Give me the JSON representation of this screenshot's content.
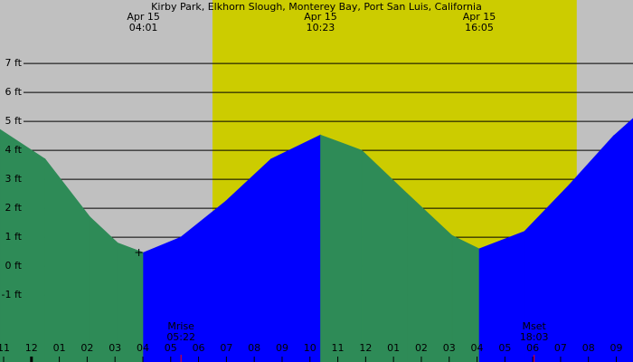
{
  "chart_data": {
    "type": "tide",
    "title": "Kirby Park, Elkhorn Slough, Monterey Bay, Port San Luis, California",
    "x": [
      -1.13,
      0.49,
      2.1,
      3.1,
      4.02,
      5.36,
      6.98,
      8.6,
      10.38,
      11.86,
      13.5,
      15.1,
      16.08,
      17.7,
      19.3,
      20.9,
      21.6
    ],
    "values": [
      4.72,
      3.7,
      1.7,
      0.8,
      0.47,
      1.0,
      2.25,
      3.7,
      4.53,
      4.0,
      2.5,
      1.06,
      0.6,
      1.2,
      2.8,
      4.5,
      5.1
    ],
    "rise_color": "#0000ff",
    "fall_color": "#2e8b57",
    "night_color": "#c0c0c0",
    "day_color": "#cccc00",
    "daylight": [
      6.5,
      19.58
    ],
    "xlim": [
      -1.13,
      21.6
    ],
    "xticks": [
      {
        "value": -1,
        "label": "11"
      },
      {
        "value": 0,
        "label": "12"
      },
      {
        "value": 1,
        "label": "01"
      },
      {
        "value": 2,
        "label": "02"
      },
      {
        "value": 3,
        "label": "03"
      },
      {
        "value": 4,
        "label": "04"
      },
      {
        "value": 5,
        "label": "05"
      },
      {
        "value": 6,
        "label": "06"
      },
      {
        "value": 7,
        "label": "07"
      },
      {
        "value": 8,
        "label": "08"
      },
      {
        "value": 9,
        "label": "09"
      },
      10,
      11,
      12,
      {
        "value": 13,
        "label": "01"
      },
      {
        "value": 14,
        "label": "02"
      },
      {
        "value": 15,
        "label": "03"
      },
      {
        "value": 16,
        "label": "04"
      },
      {
        "value": 17,
        "label": "05"
      },
      {
        "value": 18,
        "label": "06"
      },
      {
        "value": 19,
        "label": "07"
      },
      {
        "value": 20,
        "label": "08"
      },
      {
        "value": 21,
        "label": "09"
      }
    ],
    "ylim": [
      -3.31,
      9.19
    ],
    "yticks": [
      {
        "value": -1,
        "label": "-1 ft"
      },
      {
        "value": 0,
        "label": "0 ft"
      },
      {
        "value": 1,
        "label": "1 ft"
      },
      {
        "value": 2,
        "label": "2 ft"
      },
      {
        "value": 3,
        "label": "3 ft"
      },
      {
        "value": 4,
        "label": "4 ft"
      },
      {
        "value": 5,
        "label": "5 ft"
      },
      {
        "value": 6,
        "label": "6 ft"
      },
      {
        "value": 7,
        "label": "7 ft"
      }
    ],
    "grid": true,
    "extremes": [
      {
        "x": 4.02,
        "date": "Apr 15",
        "time": "04:01"
      },
      {
        "x": 10.38,
        "date": "Apr 15",
        "time": "10:23"
      },
      {
        "x": 16.08,
        "date": "Apr 15",
        "time": "16:05"
      }
    ],
    "moon": [
      {
        "x": 5.37,
        "label": "Mrise",
        "time": "05:22"
      },
      {
        "x": 18.05,
        "label": "Mset",
        "time": "18:03"
      }
    ]
  }
}
